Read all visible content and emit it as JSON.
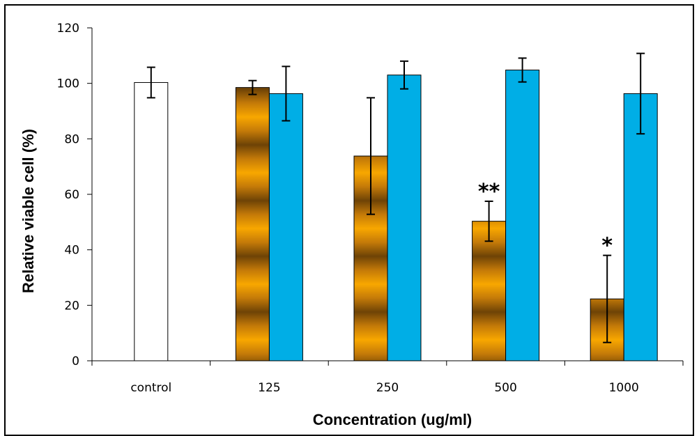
{
  "chart_data": {
    "type": "bar",
    "xlabel": "Concentration (ug/ml)",
    "ylabel": "Relative viable cell (%)",
    "ylim": [
      0,
      120
    ],
    "yticks": [
      0,
      20,
      40,
      60,
      80,
      100,
      120
    ],
    "categories": [
      "control",
      "125",
      "250",
      "500",
      "1000"
    ],
    "grid": false,
    "legend": "none",
    "series": [
      {
        "color": "#f7a800",
        "pattern": "horizontal-gradient-bands",
        "values": [
          null,
          98.5,
          73.8,
          50.3,
          22.3
        ],
        "errors": [
          null,
          2.5,
          21.0,
          7.2,
          15.7
        ]
      },
      {
        "color": "#00aee6",
        "values": [
          null,
          96.3,
          103.0,
          104.8,
          96.3
        ],
        "errors": [
          null,
          9.8,
          5.0,
          4.3,
          14.5
        ]
      }
    ],
    "control": {
      "value": 100.3,
      "error": 5.5,
      "color": "#ffffff"
    },
    "annotations": [
      {
        "text": "**",
        "category": "500",
        "series": 0
      },
      {
        "text": "*",
        "category": "1000",
        "series": 0
      }
    ]
  }
}
